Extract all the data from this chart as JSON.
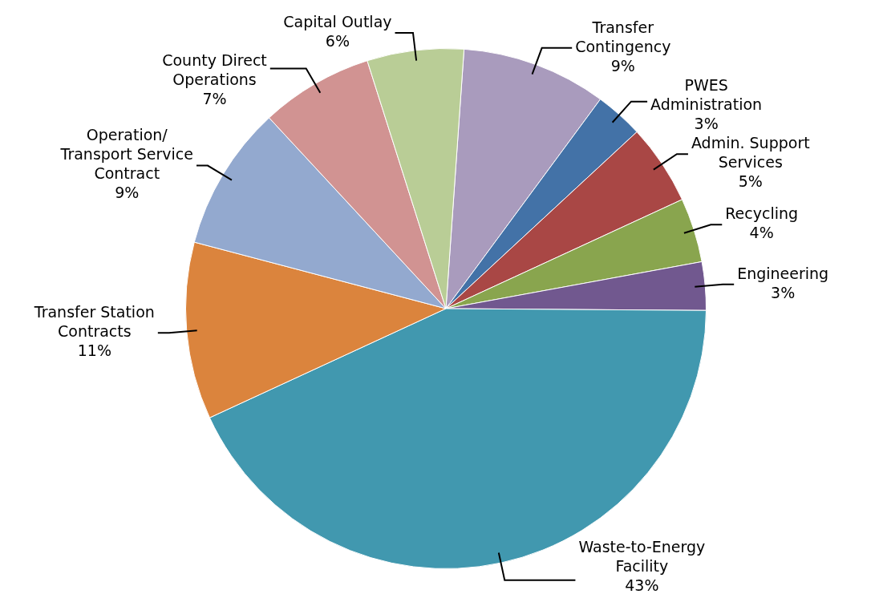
{
  "chart_data": {
    "type": "pie",
    "categories": [
      "Transfer Contingency",
      "PWES Administration",
      "Admin. Support Services",
      "Recycling",
      "Engineering",
      "Waste-to-Energy Facility",
      "Transfer Station Contracts",
      "Operation/ Transport Service Contract",
      "County Direct Operations",
      "Capital Outlay"
    ],
    "values": [
      9,
      3,
      5,
      4,
      3,
      43,
      11,
      9,
      7,
      6
    ],
    "value_labels": [
      "9%",
      "3%",
      "5%",
      "4%",
      "3%",
      "43%",
      "11%",
      "9%",
      "7%",
      "6%"
    ],
    "colors": [
      "#a99bbd",
      "#4372a7",
      "#a94745",
      "#89a54e",
      "#71588f",
      "#4198af",
      "#db843d",
      "#93a9cf",
      "#d19392",
      "#b9cd96"
    ],
    "legend": false
  }
}
